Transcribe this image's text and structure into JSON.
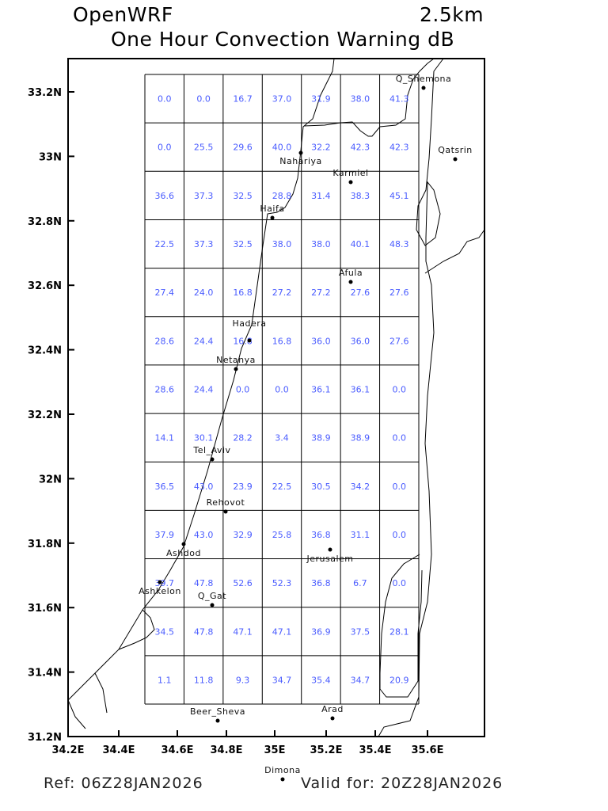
{
  "header": {
    "model": "OpenWRF",
    "resolution": "2.5km",
    "title": "One Hour Convection Warning dB"
  },
  "footer": {
    "ref": "Ref: 06Z28JAN2026",
    "valid": "Valid for: 20Z28JAN2026"
  },
  "chart_data": {
    "type": "heatmap",
    "x_ticks": [
      "34.2E",
      "34.4E",
      "34.6E",
      "34.8E",
      "35E",
      "35.2E",
      "35.4E",
      "35.6E"
    ],
    "y_ticks": [
      "33.2N",
      "33N",
      "32.8N",
      "32.6N",
      "32.4N",
      "32.2N",
      "32N",
      "31.8N",
      "31.6N",
      "31.4N",
      "31.2N"
    ],
    "value_color": "#4a5cff",
    "grid_values": [
      [
        "0.0",
        "0.0",
        "16.7",
        "37.0",
        "31.9",
        "38.0",
        "41.3"
      ],
      [
        "0.0",
        "25.5",
        "29.6",
        "40.0",
        "32.2",
        "42.3",
        "42.3"
      ],
      [
        "36.6",
        "37.3",
        "32.5",
        "28.8",
        "31.4",
        "38.3",
        "45.1"
      ],
      [
        "22.5",
        "37.3",
        "32.5",
        "38.0",
        "38.0",
        "40.1",
        "48.3"
      ],
      [
        "27.4",
        "24.0",
        "16.8",
        "27.2",
        "27.2",
        "27.6",
        "27.6"
      ],
      [
        "28.6",
        "24.4",
        "16.8",
        "16.8",
        "36.0",
        "36.0",
        "27.6"
      ],
      [
        "28.6",
        "24.4",
        "0.0",
        "0.0",
        "36.1",
        "36.1",
        "0.0"
      ],
      [
        "14.1",
        "30.1",
        "28.2",
        "3.4",
        "38.9",
        "38.9",
        "0.0"
      ],
      [
        "36.5",
        "43.0",
        "23.9",
        "22.5",
        "30.5",
        "34.2",
        "0.0"
      ],
      [
        "37.9",
        "43.0",
        "32.9",
        "25.8",
        "36.8",
        "31.1",
        "0.0"
      ],
      [
        "39.7",
        "47.8",
        "52.6",
        "52.3",
        "36.8",
        "6.7",
        "0.0"
      ],
      [
        "34.5",
        "47.8",
        "47.1",
        "47.1",
        "36.9",
        "37.5",
        "28.1"
      ],
      [
        "1.1",
        "11.8",
        "9.3",
        "34.7",
        "35.4",
        "34.7",
        "20.9"
      ]
    ],
    "cities": [
      "Q_Shemona",
      "Qatsrin",
      "Nahariya",
      "Karmiel",
      "Haifa",
      "Afula",
      "Hadera",
      "Netanya",
      "Tel_Aviv",
      "Rehovot",
      "Ashdod",
      "Jerusalem",
      "Ashkelon",
      "Q_Gat",
      "Beer_Sheva",
      "Arad",
      "Dimona"
    ]
  }
}
